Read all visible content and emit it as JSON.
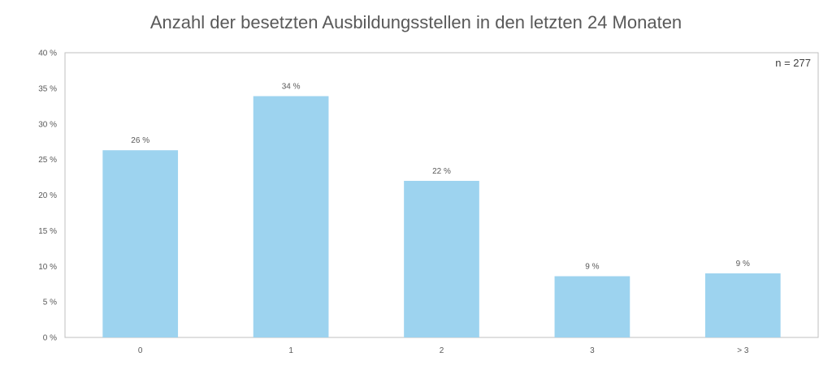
{
  "chart_data": {
    "type": "bar",
    "title": "Anzahl der besetzten Ausbildungsstellen in den letzten 24 Monaten",
    "annotation": "n = 277",
    "categories": [
      "0",
      "1",
      "2",
      "3",
      "> 3"
    ],
    "values": [
      26.3,
      33.9,
      22.0,
      8.6,
      9.0
    ],
    "data_labels": [
      "26 %",
      "34 %",
      "22 %",
      "9 %",
      "9 %"
    ],
    "y_ticks": [
      "0 %",
      "5 %",
      "10 %",
      "15 %",
      "20 %",
      "25 %",
      "30 %",
      "35 %",
      "40 %"
    ],
    "ylim": [
      0,
      40
    ],
    "grid": false,
    "bar_color": "#9dd3ef"
  }
}
